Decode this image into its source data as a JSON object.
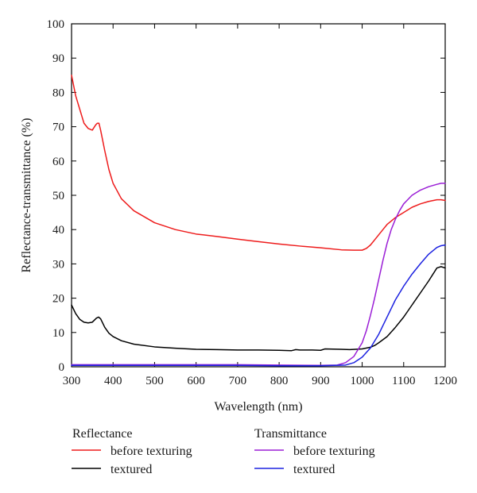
{
  "chart_data": {
    "type": "line",
    "title": "",
    "xlabel": "Wavelength (nm)",
    "ylabel": "Reflectance-transmittance (%)",
    "xlim": [
      300,
      1200
    ],
    "ylim": [
      0,
      100
    ],
    "xticks": [
      300,
      400,
      500,
      600,
      700,
      800,
      900,
      1000,
      1100,
      1200
    ],
    "yticks": [
      0,
      10,
      20,
      30,
      40,
      50,
      60,
      70,
      80,
      90,
      100
    ],
    "grid": false,
    "legend": {
      "placement": "bottom",
      "groups": [
        {
          "title": "Reflectance",
          "entries": [
            "before texturing",
            "textured"
          ]
        },
        {
          "title": "Transmittance",
          "entries": [
            "before texturing",
            "textured"
          ]
        }
      ]
    },
    "series": [
      {
        "name": "before texturing",
        "group": "Reflectance",
        "color": "#ee1c1c",
        "x": [
          300,
          310,
          320,
          330,
          340,
          350,
          358,
          362,
          366,
          370,
          380,
          390,
          400,
          420,
          450,
          500,
          550,
          600,
          650,
          700,
          750,
          800,
          850,
          900,
          950,
          980,
          1000,
          1010,
          1020,
          1030,
          1040,
          1050,
          1060,
          1070,
          1080,
          1100,
          1120,
          1140,
          1160,
          1180,
          1190,
          1200
        ],
        "y": [
          85,
          79,
          75,
          71,
          69.5,
          69,
          70.5,
          71,
          71,
          69,
          63,
          57.5,
          53.5,
          49,
          45.5,
          42,
          40,
          38.7,
          38,
          37.2,
          36.5,
          35.8,
          35.2,
          34.7,
          34.1,
          34,
          34,
          34.5,
          35.5,
          37,
          38.5,
          40,
          41.5,
          42.5,
          43.5,
          45,
          46.5,
          47.5,
          48.2,
          48.7,
          48.7,
          48.5
        ]
      },
      {
        "name": "textured",
        "group": "Reflectance",
        "color": "#000000",
        "x": [
          300,
          310,
          320,
          330,
          340,
          350,
          360,
          365,
          370,
          380,
          390,
          400,
          420,
          450,
          500,
          550,
          600,
          650,
          700,
          750,
          800,
          830,
          840,
          850,
          880,
          900,
          910,
          950,
          970,
          1000,
          1020,
          1030,
          1040,
          1060,
          1080,
          1100,
          1120,
          1140,
          1160,
          1180,
          1190,
          1200
        ],
        "y": [
          18,
          15.5,
          13.8,
          13,
          12.8,
          13,
          14.2,
          14.5,
          14,
          11.5,
          9.8,
          8.8,
          7.6,
          6.6,
          5.8,
          5.4,
          5.1,
          5.0,
          4.9,
          4.9,
          4.8,
          4.7,
          5.0,
          4.9,
          4.9,
          4.8,
          5.2,
          5.1,
          5.0,
          5.2,
          5.7,
          6.2,
          7.0,
          8.8,
          11.5,
          14.5,
          18,
          21.5,
          25,
          28.8,
          29.2,
          28.8
        ]
      },
      {
        "name": "before texturing",
        "group": "Transmittance",
        "color": "#9b1fd6",
        "x": [
          300,
          400,
          500,
          600,
          700,
          800,
          900,
          940,
          960,
          980,
          1000,
          1010,
          1020,
          1030,
          1040,
          1050,
          1060,
          1070,
          1080,
          1090,
          1100,
          1120,
          1140,
          1160,
          1180,
          1190,
          1200
        ],
        "y": [
          0.6,
          0.6,
          0.6,
          0.6,
          0.6,
          0.5,
          0.4,
          0.5,
          1.2,
          3,
          7,
          10.5,
          15,
          20,
          25.5,
          31,
          36,
          40,
          43,
          45.5,
          47.5,
          50,
          51.5,
          52.5,
          53.2,
          53.5,
          53.5
        ]
      },
      {
        "name": "textured",
        "group": "Transmittance",
        "color": "#1c22e0",
        "x": [
          300,
          400,
          500,
          600,
          700,
          800,
          900,
          960,
          980,
          1000,
          1020,
          1040,
          1060,
          1080,
          1100,
          1120,
          1140,
          1160,
          1180,
          1190,
          1200
        ],
        "y": [
          0.4,
          0.4,
          0.4,
          0.4,
          0.4,
          0.3,
          0.3,
          0.5,
          1.2,
          2.8,
          5.5,
          9.5,
          14.5,
          19.5,
          23.5,
          27,
          30,
          32.8,
          34.8,
          35.3,
          35.5
        ]
      }
    ]
  }
}
